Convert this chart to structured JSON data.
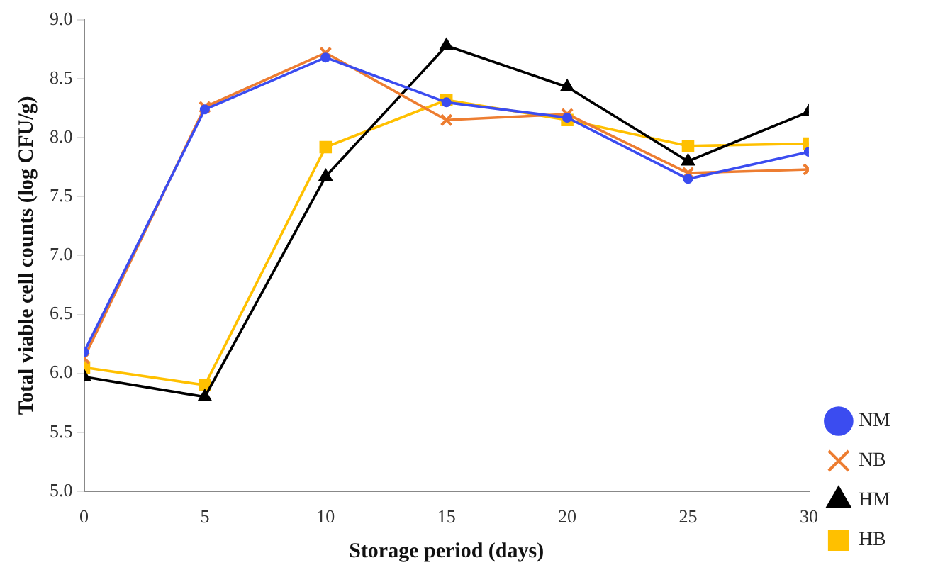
{
  "chart_data": {
    "type": "line",
    "xlabel": "Storage period (days)",
    "ylabel": "Total viable cell counts (log CFU/g)",
    "x": [
      0,
      5,
      10,
      15,
      20,
      25,
      30
    ],
    "xlim": [
      0,
      30
    ],
    "xticks": [
      0,
      5,
      10,
      15,
      20,
      25,
      30
    ],
    "ylim": [
      5,
      9
    ],
    "yticks": [
      {
        "value": 5,
        "label": "5.0"
      },
      {
        "value": 5.5,
        "label": "5.5"
      },
      {
        "value": 6,
        "label": "6.0"
      },
      {
        "value": 6.5,
        "label": "6.5"
      },
      {
        "value": 7,
        "label": "7.0"
      },
      {
        "value": 7.5,
        "label": "7.5"
      },
      {
        "value": 8,
        "label": "8.0"
      },
      {
        "value": 8.5,
        "label": "8.5"
      },
      {
        "value": 9,
        "label": "9.0"
      }
    ],
    "grid": false,
    "legend": "right",
    "line_style": "solid",
    "series": [
      {
        "name": "NM",
        "color": "#3b4cf0",
        "marker": "circle",
        "values": [
          6.18,
          8.24,
          8.68,
          8.3,
          8.17,
          7.65,
          7.88
        ]
      },
      {
        "name": "NB",
        "color": "#ed7d31",
        "marker": "cross",
        "values": [
          6.13,
          8.26,
          8.72,
          8.15,
          8.2,
          7.7,
          7.73
        ]
      },
      {
        "name": "HM",
        "color": "#000000",
        "marker": "triangle",
        "values": [
          5.97,
          5.8,
          7.67,
          8.78,
          8.43,
          7.8,
          8.22
        ]
      },
      {
        "name": "HB",
        "color": "#ffc000",
        "marker": "square",
        "values": [
          6.05,
          5.9,
          7.92,
          8.32,
          8.15,
          7.93,
          7.95
        ]
      }
    ]
  }
}
